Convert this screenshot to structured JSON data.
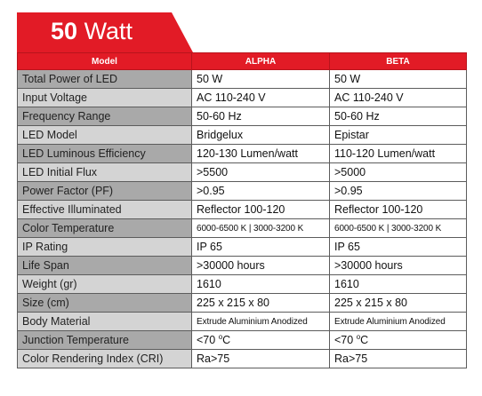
{
  "header": {
    "wattage_value": "50",
    "wattage_unit": "Watt"
  },
  "table": {
    "columns": [
      "Model",
      "ALPHA",
      "BETA"
    ],
    "rows": [
      {
        "label": "Total Power of LED",
        "alpha": "50 W",
        "beta": "50 W"
      },
      {
        "label": "Input Voltage",
        "alpha": "AC 110-240 V",
        "beta": "AC 110-240 V"
      },
      {
        "label": "Frequency Range",
        "alpha": "50-60 Hz",
        "beta": "50-60 Hz"
      },
      {
        "label": "LED Model",
        "alpha": "Bridgelux",
        "beta": "Epistar"
      },
      {
        "label": "LED Luminous Efficiency",
        "alpha": "120-130 Lumen/watt",
        "beta": "110-120 Lumen/watt"
      },
      {
        "label": "LED Initial Flux",
        "alpha": ">5500",
        "beta": ">5000"
      },
      {
        "label": "Power Factor (PF)",
        "alpha": ">0.95",
        "beta": ">0.95"
      },
      {
        "label": "Effective Illuminated",
        "alpha": "Reflector 100-120",
        "beta": "Reflector 100-120"
      },
      {
        "label": "Color Temperature",
        "alpha": "6000-6500 K | 3000-3200 K",
        "beta": "6000-6500 K | 3000-3200 K"
      },
      {
        "label": "IP Rating",
        "alpha": "IP 65",
        "beta": "IP 65"
      },
      {
        "label": "Life Span",
        "alpha": ">30000 hours",
        "beta": ">30000 hours"
      },
      {
        "label": "Weight (gr)",
        "alpha": "1610",
        "beta": "1610"
      },
      {
        "label": "Size (cm)",
        "alpha": "225 x 215 x 80",
        "beta": "225 x 215 x 80"
      },
      {
        "label": "Body Material",
        "alpha": "Extrude Aluminium Anodized",
        "beta": "Extrude Aluminium Anodized"
      },
      {
        "label": "Junction Temperature",
        "alpha_prefix": "<70 ",
        "alpha_sup": "o",
        "alpha_suffix": "C",
        "beta_prefix": "<70 ",
        "beta_sup": "o",
        "beta_suffix": "C"
      },
      {
        "label": "Color Rendering Index (CRI)",
        "alpha": "Ra>75",
        "beta": "Ra>75"
      }
    ]
  },
  "colors": {
    "accent": "#e21b26",
    "row_dark": "#a9a9a9",
    "row_light": "#d4d4d4",
    "border": "#5c5c5c"
  }
}
